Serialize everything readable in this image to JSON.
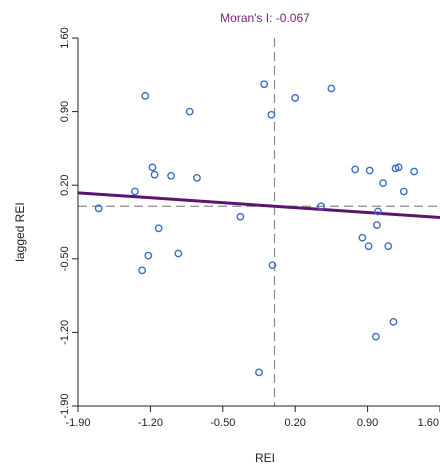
{
  "chart_data": {
    "type": "scatter",
    "title": "Moran's I: -0.067",
    "xlabel": "REI",
    "ylabel": "lagged REI",
    "xlim": [
      -1.9,
      1.6
    ],
    "ylim": [
      -1.9,
      1.6
    ],
    "x_ticks": [
      -1.9,
      -1.2,
      -0.5,
      0.2,
      0.9,
      1.6
    ],
    "x_tick_labels": [
      "-1.90",
      "-1.20",
      "-0.50",
      "0.20",
      "0.90",
      "1.60"
    ],
    "y_ticks": [
      -1.9,
      -1.2,
      -0.5,
      0.2,
      0.9,
      1.6
    ],
    "y_tick_labels": [
      "-1.90",
      "-1.20",
      "-0.50",
      "0.20",
      "0.90",
      "1.60"
    ],
    "mean_x": 0.0,
    "mean_y": 0.0,
    "regression": {
      "slope": -0.067,
      "intercept": 0.0,
      "label": ""
    },
    "points": [
      {
        "x": -1.7,
        "y": -0.02
      },
      {
        "x": -1.35,
        "y": 0.14
      },
      {
        "x": -1.28,
        "y": -0.61
      },
      {
        "x": -1.25,
        "y": 1.05
      },
      {
        "x": -1.22,
        "y": -0.47
      },
      {
        "x": -1.18,
        "y": 0.37
      },
      {
        "x": -1.16,
        "y": 0.3
      },
      {
        "x": -1.12,
        "y": -0.21
      },
      {
        "x": -1.0,
        "y": 0.29
      },
      {
        "x": -0.93,
        "y": -0.45
      },
      {
        "x": -0.82,
        "y": 0.9
      },
      {
        "x": -0.75,
        "y": 0.27
      },
      {
        "x": -0.33,
        "y": -0.1
      },
      {
        "x": -0.15,
        "y": -1.58
      },
      {
        "x": -0.1,
        "y": 1.16
      },
      {
        "x": -0.03,
        "y": 0.87
      },
      {
        "x": -0.02,
        "y": -0.56
      },
      {
        "x": 0.2,
        "y": 1.03
      },
      {
        "x": 0.45,
        "y": 0.0
      },
      {
        "x": 0.55,
        "y": 1.12
      },
      {
        "x": 0.78,
        "y": 0.35
      },
      {
        "x": 0.85,
        "y": -0.3
      },
      {
        "x": 0.91,
        "y": -0.38
      },
      {
        "x": 0.92,
        "y": 0.34
      },
      {
        "x": 0.98,
        "y": -1.24
      },
      {
        "x": 0.99,
        "y": -0.18
      },
      {
        "x": 1.0,
        "y": -0.05
      },
      {
        "x": 1.05,
        "y": 0.22
      },
      {
        "x": 1.1,
        "y": -0.38
      },
      {
        "x": 1.15,
        "y": -1.1
      },
      {
        "x": 1.17,
        "y": 0.36
      },
      {
        "x": 1.2,
        "y": 0.37
      },
      {
        "x": 1.25,
        "y": 0.14
      },
      {
        "x": 1.35,
        "y": 0.33
      }
    ]
  },
  "colors": {
    "title": "#7a1f7a",
    "regression": "#5c1470",
    "points": "#3a6fc4",
    "reference": "#8c8c8c",
    "axis": "#222222"
  }
}
